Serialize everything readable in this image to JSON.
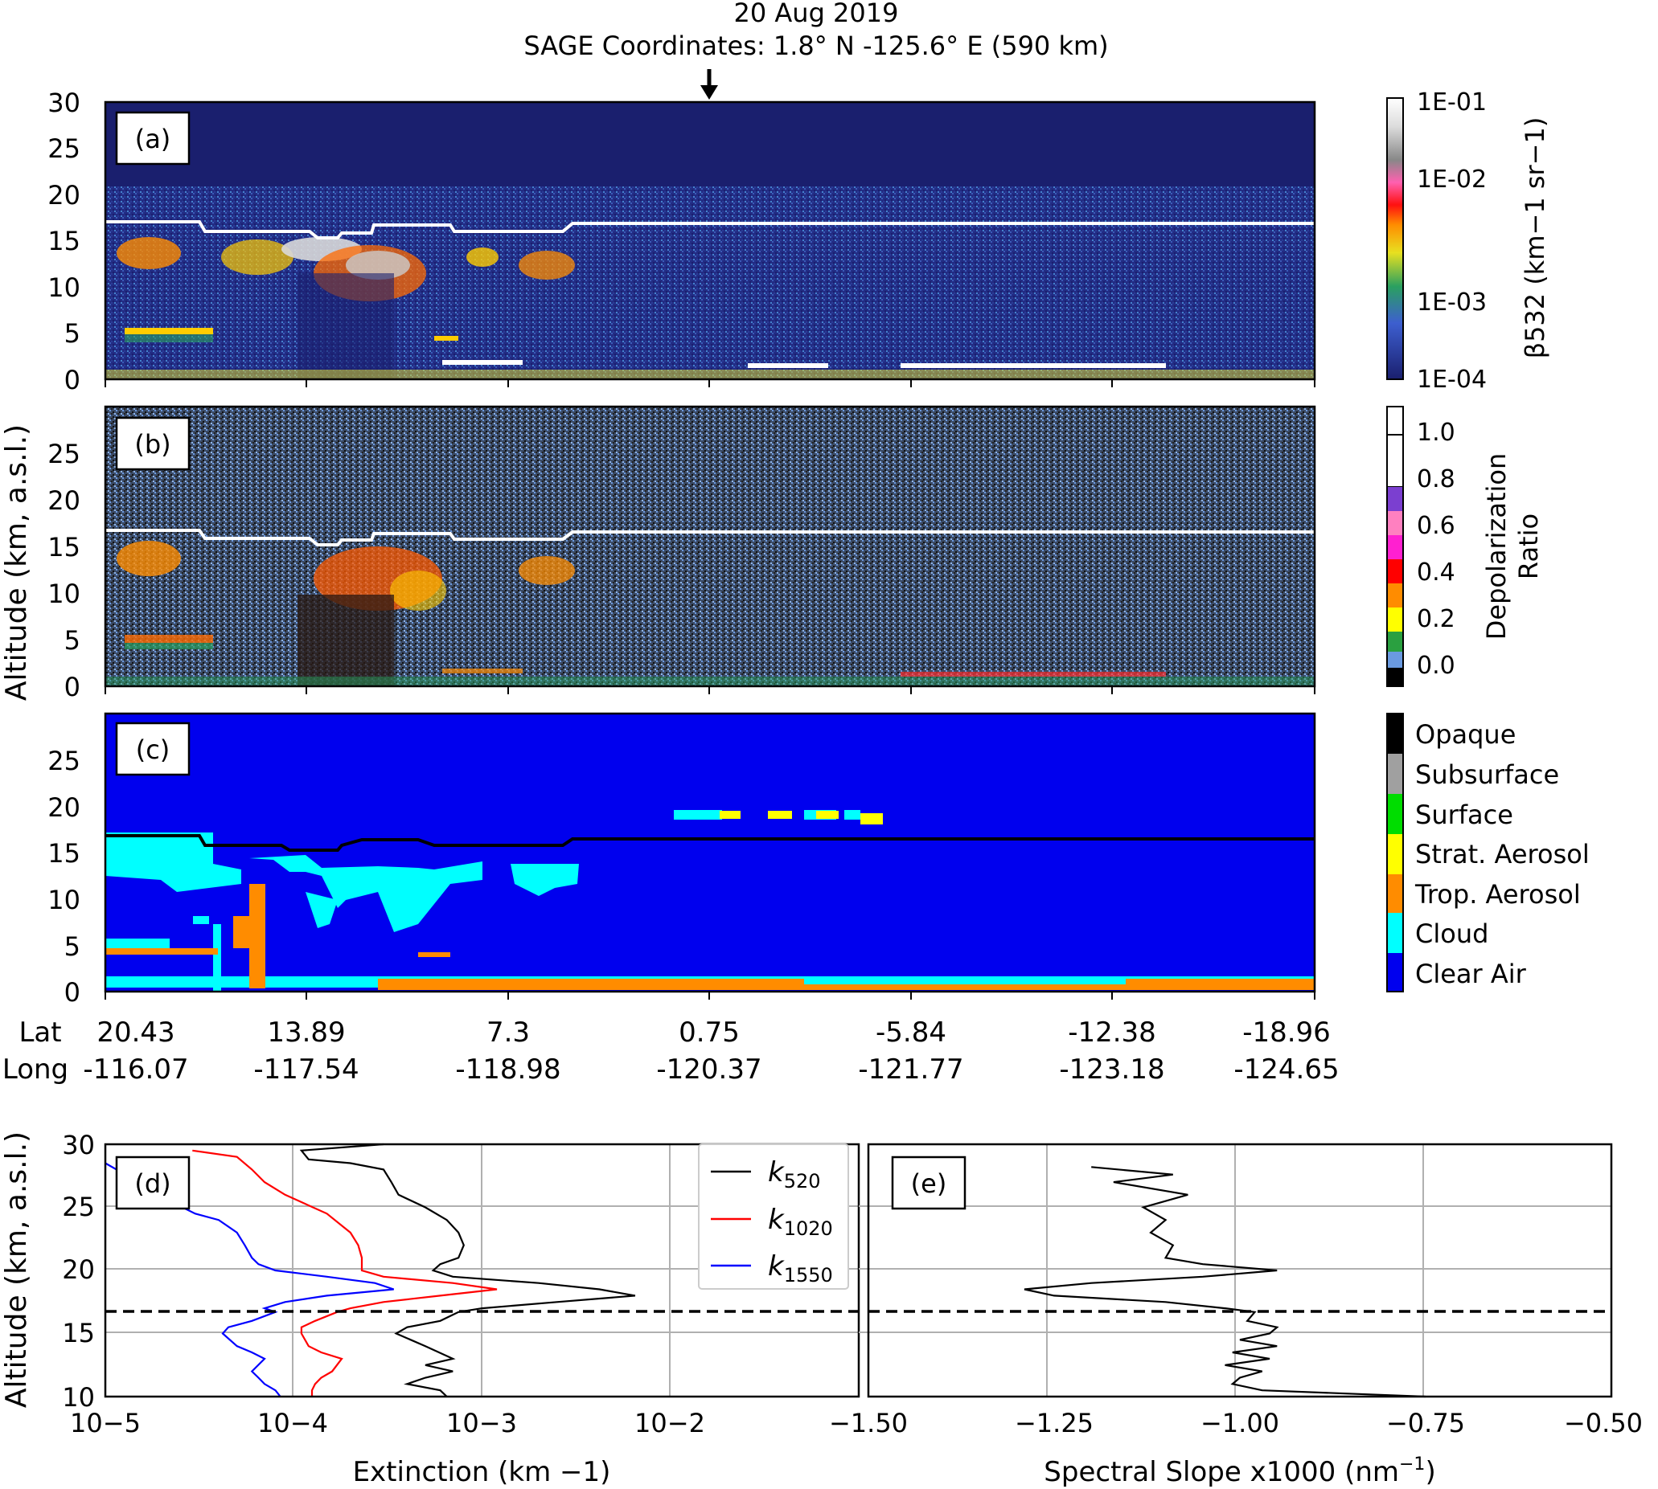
{
  "header": {
    "date": "20 Aug 2019",
    "coords": "SAGE Coordinates: 1.8° N  -125.6° E  (590 km)"
  },
  "panels": {
    "a_label": "(a)",
    "b_label": "(b)",
    "c_label": "(c)",
    "d_label": "(d)",
    "e_label": "(e)"
  },
  "curtain": {
    "ylabel": "Altitude (km, a.s.l.)",
    "yticks_a": [
      "0",
      "5",
      "10",
      "15",
      "20",
      "25",
      "30"
    ],
    "yticks_bc": [
      "0",
      "5",
      "10",
      "15",
      "20",
      "25"
    ],
    "lat_label": "Lat",
    "long_label": "Long",
    "lat_ticks": [
      "20.43",
      "13.89",
      "7.3",
      "0.75",
      "-5.84",
      "-12.38",
      "-18.96"
    ],
    "long_ticks": [
      "-116.07",
      "-117.54",
      "-118.98",
      "-120.37",
      "-121.77",
      "-123.18",
      "-124.65"
    ],
    "colors": {
      "background_a": "#1a1f6e",
      "background_b": "#3a4a63",
      "clear_air": "#0000ee",
      "cloud": "#00ffff",
      "strat_aerosol": "#ffff00",
      "trop_aerosol": "#ff8c00",
      "tropopause_a_b": "#ffffff",
      "tropopause_c": "#000000"
    }
  },
  "colorbars": {
    "a_label": "β532 (km−1 sr−1)",
    "a_ticks": [
      "1E-01",
      "1E-02",
      "1E-03",
      "1E-04"
    ],
    "b_label_line1": "Depolarization",
    "b_label_line2": "Ratio",
    "b_ticks": [
      "1.0",
      "0.8",
      "0.6",
      "0.4",
      "0.2",
      "0.0"
    ],
    "c_classes": [
      "Opaque",
      "Subsurface",
      "Surface",
      "Strat. Aerosol",
      "Trop. Aerosol",
      "Cloud",
      "Clear Air"
    ],
    "c_colors": [
      "#000000",
      "#a0a0a0",
      "#00dd00",
      "#ffff00",
      "#ff8c00",
      "#00ffff",
      "#0000ee"
    ]
  },
  "chart_data": [
    {
      "type": "line",
      "panel": "(d)",
      "xlabel": "Extinction (km −1)",
      "ylabel": "Altitude (km, a.s.l.)",
      "xscale": "log",
      "xlim": [
        1e-05,
        0.1
      ],
      "ylim": [
        10,
        30
      ],
      "xticks": [
        "10−5",
        "10−4",
        "10−3",
        "10−2"
      ],
      "yticks": [
        "10",
        "15",
        "20",
        "25",
        "30"
      ],
      "grid": true,
      "legend_position": "top-right",
      "tropopause_dashed_altitude": 16.7,
      "series": [
        {
          "name": "k520",
          "color": "#000000",
          "points": [
            [
              0.0003,
              30
            ],
            [
              0.00011,
              29.5
            ],
            [
              0.00012,
              28.8
            ],
            [
              0.0002,
              28.5
            ],
            [
              0.0003,
              28
            ],
            [
              0.00033,
              27
            ],
            [
              0.00036,
              26
            ],
            [
              0.0005,
              25
            ],
            [
              0.00065,
              24
            ],
            [
              0.00075,
              23
            ],
            [
              0.0008,
              22
            ],
            [
              0.00075,
              21
            ],
            [
              0.0006,
              20.5
            ],
            [
              0.00055,
              20
            ],
            [
              0.0007,
              19.5
            ],
            [
              0.002,
              19
            ],
            [
              0.0042,
              18.5
            ],
            [
              0.0065,
              18
            ],
            [
              0.0025,
              17.5
            ],
            [
              0.001,
              17
            ],
            [
              0.00075,
              16.7
            ],
            [
              0.0006,
              16
            ],
            [
              0.0004,
              15.5
            ],
            [
              0.00035,
              15
            ],
            [
              0.0005,
              14
            ],
            [
              0.0007,
              13
            ],
            [
              0.0005,
              12.5
            ],
            [
              0.0007,
              12
            ],
            [
              0.0005,
              11.5
            ],
            [
              0.0004,
              11
            ],
            [
              0.0006,
              10.5
            ],
            [
              0.00065,
              10
            ]
          ]
        },
        {
          "name": "k1020",
          "color": "#ff0000",
          "points": [
            [
              2.9e-05,
              29.5
            ],
            [
              5e-05,
              29
            ],
            [
              6e-05,
              28
            ],
            [
              7e-05,
              27
            ],
            [
              9e-05,
              26
            ],
            [
              0.00015,
              24.5
            ],
            [
              0.0002,
              23
            ],
            [
              0.00022,
              22
            ],
            [
              0.00023,
              21
            ],
            [
              0.00023,
              20
            ],
            [
              0.0003,
              19.5
            ],
            [
              0.0007,
              19
            ],
            [
              0.0012,
              18.5
            ],
            [
              0.0006,
              18
            ],
            [
              0.0003,
              17.5
            ],
            [
              0.0002,
              17
            ],
            [
              0.00017,
              16.7
            ],
            [
              0.00013,
              16
            ],
            [
              0.00011,
              15.5
            ],
            [
              0.00011,
              15
            ],
            [
              0.00012,
              14
            ],
            [
              0.00014,
              13.5
            ],
            [
              0.00018,
              13
            ],
            [
              0.00016,
              12
            ],
            [
              0.00014,
              11.5
            ],
            [
              0.00013,
              11
            ],
            [
              0.000125,
              10.5
            ],
            [
              0.000125,
              10
            ]
          ]
        },
        {
          "name": "k1550",
          "color": "#0000ff",
          "points": [
            [
              1e-05,
              28.5
            ],
            [
              1.5e-05,
              27
            ],
            [
              2.2e-05,
              25.5
            ],
            [
              3e-05,
              24.5
            ],
            [
              4e-05,
              24
            ],
            [
              5e-05,
              23
            ],
            [
              5.5e-05,
              22
            ],
            [
              6e-05,
              21
            ],
            [
              6.5e-05,
              20.5
            ],
            [
              8e-05,
              20
            ],
            [
              0.00015,
              19.5
            ],
            [
              0.00027,
              19
            ],
            [
              0.00034,
              18.5
            ],
            [
              0.00015,
              18
            ],
            [
              9e-05,
              17.5
            ],
            [
              7e-05,
              17
            ],
            [
              8e-05,
              16.7
            ],
            [
              6e-05,
              16
            ],
            [
              4.5e-05,
              15.5
            ],
            [
              4.2e-05,
              15
            ],
            [
              5e-05,
              14
            ],
            [
              6e-05,
              13.5
            ],
            [
              7e-05,
              13
            ],
            [
              6e-05,
              12
            ],
            [
              6.5e-05,
              11.5
            ],
            [
              7e-05,
              11
            ],
            [
              8e-05,
              10.5
            ],
            [
              8.5e-05,
              10
            ]
          ]
        }
      ]
    },
    {
      "type": "line",
      "panel": "(e)",
      "xlabel": "Spectral Slope x1000 (nm−1)",
      "xlim": [
        -1.5,
        -0.5
      ],
      "ylim": [
        10,
        30
      ],
      "xticks": [
        "−1.50",
        "−1.25",
        "−1.00",
        "−0.75",
        "−0.50"
      ],
      "grid": true,
      "tropopause_dashed_altitude": 16.7,
      "series": [
        {
          "name": "",
          "color": "#000000",
          "points": [
            [
              -1.2,
              28.2
            ],
            [
              -1.09,
              27.6
            ],
            [
              -1.17,
              27
            ],
            [
              -1.07,
              26
            ],
            [
              -1.13,
              25
            ],
            [
              -1.1,
              24
            ],
            [
              -1.12,
              23
            ],
            [
              -1.09,
              22
            ],
            [
              -1.1,
              21
            ],
            [
              -1.05,
              20.5
            ],
            [
              -0.95,
              20
            ],
            [
              -1.05,
              19.5
            ],
            [
              -1.2,
              19
            ],
            [
              -1.29,
              18.5
            ],
            [
              -1.25,
              18
            ],
            [
              -1.1,
              17.5
            ],
            [
              -1.02,
              17
            ],
            [
              -0.98,
              16.7
            ],
            [
              -0.99,
              16
            ],
            [
              -0.95,
              15.5
            ],
            [
              -0.96,
              15
            ],
            [
              -1.0,
              14.5
            ],
            [
              -0.95,
              14
            ],
            [
              -1.01,
              13.5
            ],
            [
              -0.96,
              13
            ],
            [
              -1.02,
              12.5
            ],
            [
              -0.97,
              12
            ],
            [
              -1.0,
              11.5
            ],
            [
              -1.01,
              11
            ],
            [
              -0.97,
              10.5
            ],
            [
              -0.75,
              10
            ]
          ]
        }
      ]
    }
  ],
  "legend": {
    "k520_main": "k",
    "k520_sub": "520",
    "k1020_main": "k",
    "k1020_sub": "1020",
    "k1550_main": "k",
    "k1550_sub": "1550"
  },
  "bottom": {
    "ylabel": "Altitude (km, a.s.l.)",
    "d_xlabel": "Extinction (km −1)",
    "e_xlabel_main": "Spectral Slope x1000 (nm",
    "e_xlabel_sup": "−1",
    "e_xlabel_end": ")"
  }
}
